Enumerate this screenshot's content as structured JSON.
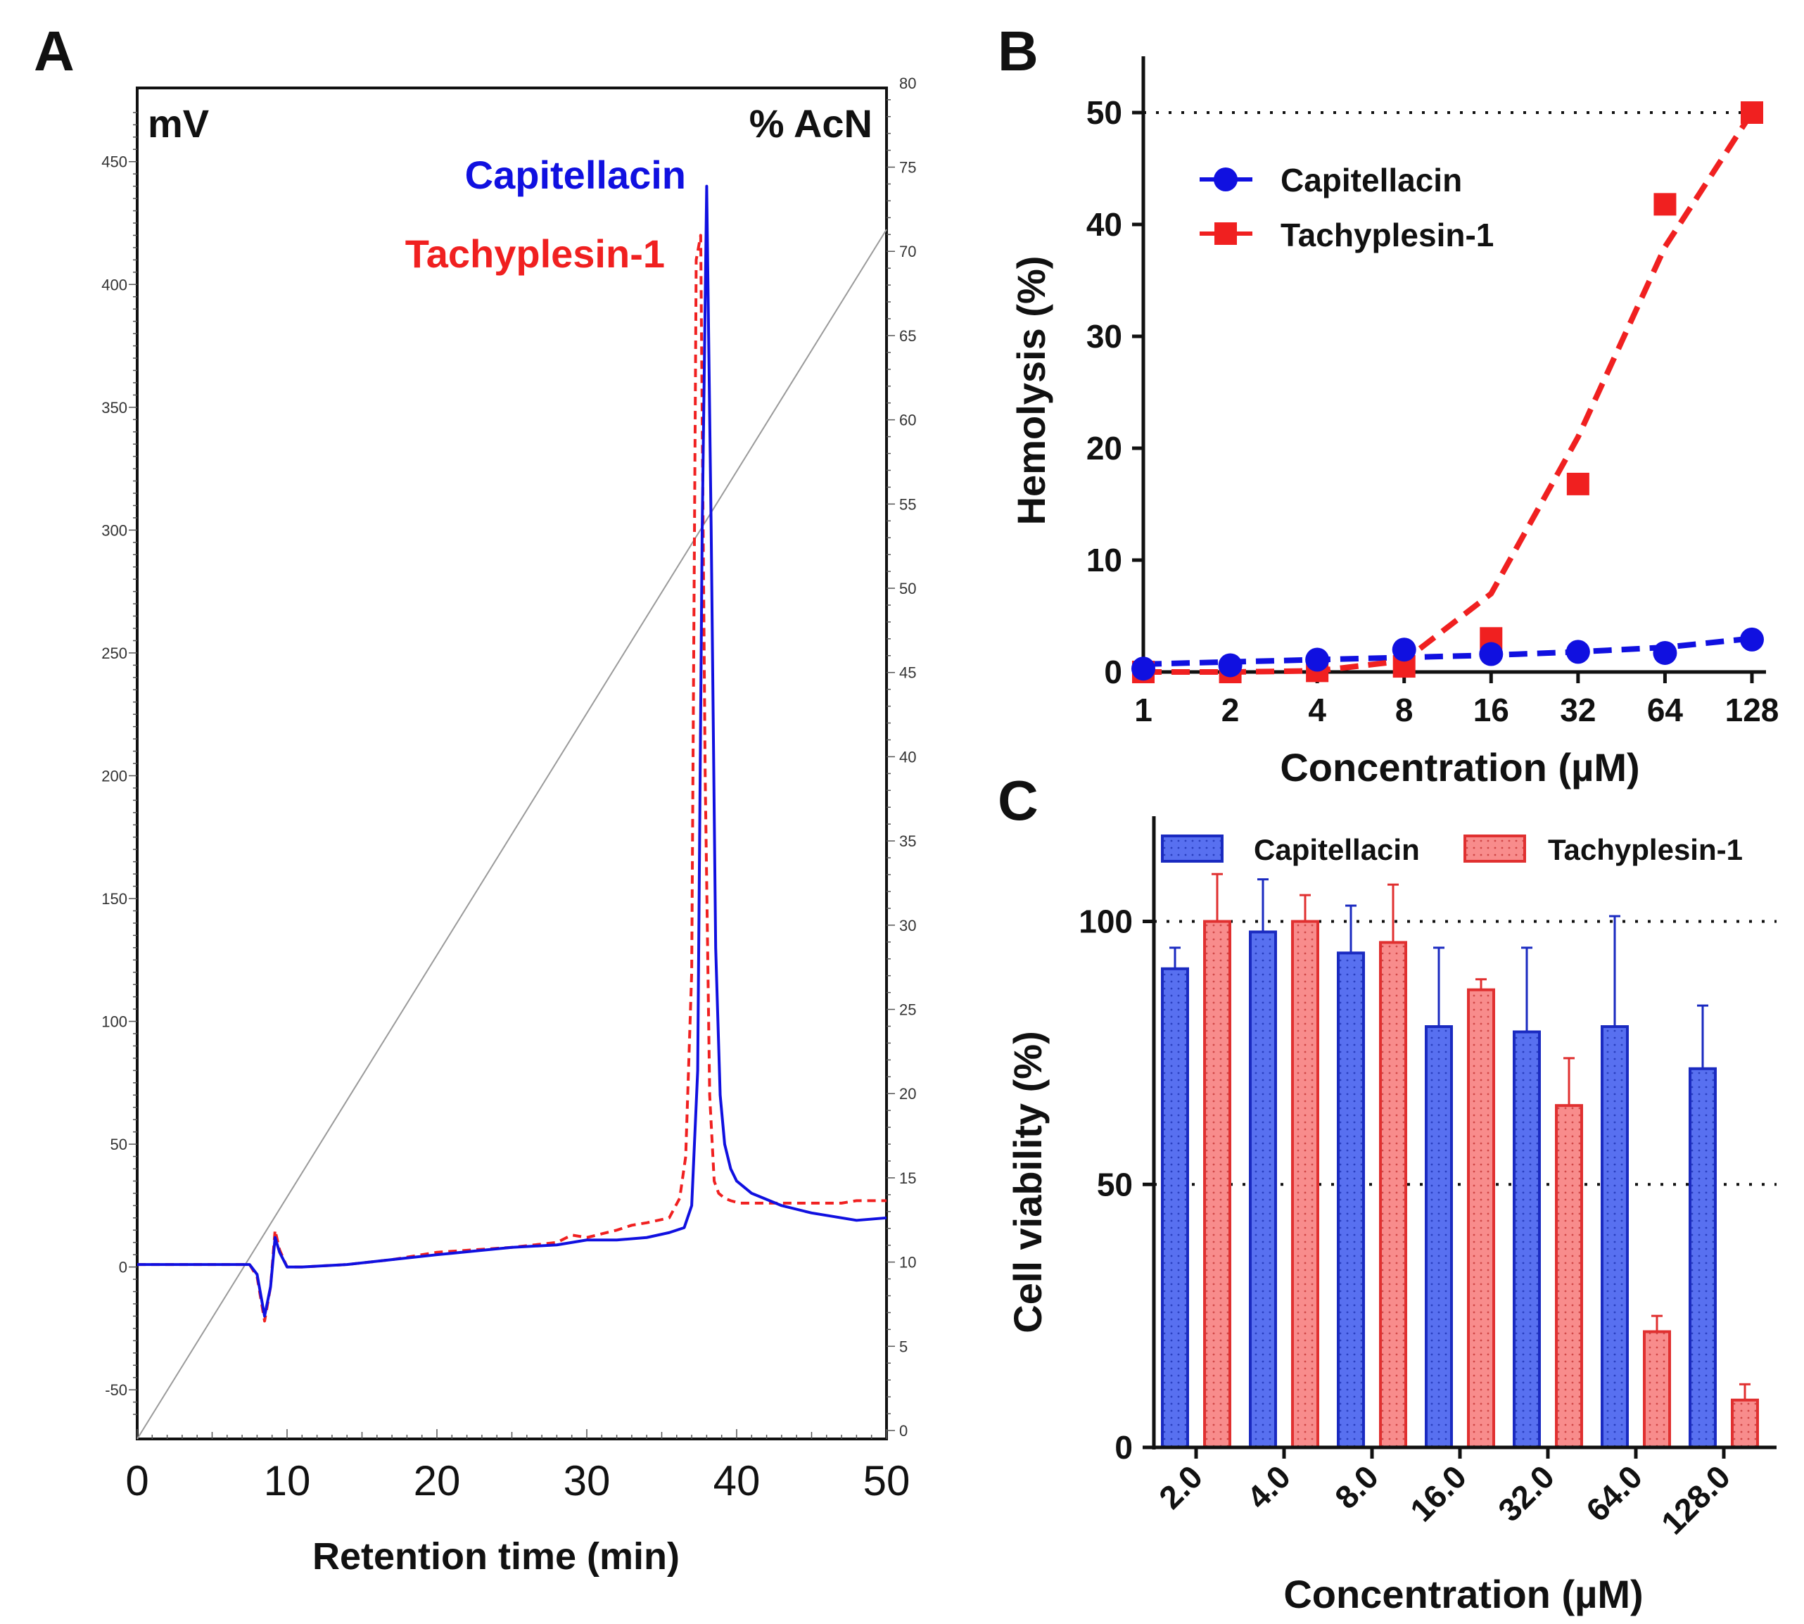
{
  "colors": {
    "capitellacin": "#1010e0",
    "tachyplesin": "#f02020",
    "capitellacin_bar": "#5870f0",
    "tachyplesin_bar": "#f88c8c",
    "axis": "#111111",
    "gradient": "#9a9a9a"
  },
  "panels": {
    "a": "A",
    "b": "B",
    "c": "C"
  },
  "chart_data": [
    {
      "id": "A",
      "type": "line",
      "title": "",
      "xlabel": "Retention time (min)",
      "ylabel_left": "mV",
      "ylabel_right": "% AcN",
      "xlim": [
        0,
        50
      ],
      "ylim": [
        -70,
        480
      ],
      "ylim_right": [
        -0.5,
        79.7
      ],
      "x_ticks": [
        0,
        10,
        20,
        30,
        40,
        50
      ],
      "y_ticks": [
        -50,
        0,
        50,
        100,
        150,
        200,
        250,
        300,
        350,
        400,
        450
      ],
      "y_ticks_right": [
        0,
        5,
        10,
        15,
        20,
        25,
        30,
        35,
        40,
        45,
        50,
        55,
        60,
        65,
        70,
        75,
        80
      ],
      "annotations": [
        "Capitellacin",
        "Tachyplesin-1"
      ],
      "series": [
        {
          "name": "Capitellacin",
          "style": "solid",
          "x": [
            0,
            7.5,
            8.0,
            8.5,
            8.9,
            9.2,
            9.5,
            10.0,
            11,
            14,
            17,
            20,
            25,
            28,
            29,
            30,
            32,
            34,
            35.5,
            36.5,
            37.0,
            37.4,
            37.7,
            38.0,
            38.3,
            38.6,
            38.9,
            39.2,
            39.6,
            40.0,
            41,
            43,
            45,
            47,
            48,
            50
          ],
          "y": [
            1,
            1,
            -3,
            -20,
            -8,
            12,
            6,
            0,
            0,
            1,
            3,
            5,
            8,
            9,
            10,
            11,
            11,
            12,
            14,
            16,
            25,
            80,
            300,
            440,
            300,
            130,
            70,
            50,
            40,
            35,
            30,
            25,
            22,
            20,
            19,
            20
          ]
        },
        {
          "name": "Tachyplesin-1",
          "style": "dashed",
          "x": [
            0,
            7.5,
            8.0,
            8.5,
            8.9,
            9.2,
            9.5,
            10.0,
            11,
            14,
            17,
            20,
            25,
            28,
            29,
            30,
            32,
            33,
            34,
            35.5,
            36.2,
            36.6,
            37.0,
            37.3,
            37.6,
            37.9,
            38.2,
            38.5,
            38.8,
            39.2,
            39.6,
            40.2,
            41,
            43,
            45,
            47,
            48,
            50
          ],
          "y": [
            1,
            1,
            -4,
            -22,
            -8,
            15,
            7,
            0,
            0,
            1,
            3,
            6,
            8,
            10,
            13,
            12,
            15,
            17,
            18,
            20,
            28,
            45,
            120,
            410,
            420,
            200,
            70,
            35,
            30,
            28,
            27,
            26,
            26,
            26,
            26,
            26,
            27,
            27
          ]
        },
        {
          "name": "% AcN gradient",
          "style": "thin",
          "axis": "right",
          "x": [
            0,
            50
          ],
          "y": [
            -0.5,
            71.3
          ]
        }
      ]
    },
    {
      "id": "B",
      "type": "line",
      "title": "",
      "xlabel": "Concentration (µM)",
      "ylabel": "Hemolysis (%)",
      "xscale": "log2",
      "categories": [
        "1",
        "2",
        "4",
        "8",
        "16",
        "32",
        "64",
        "128"
      ],
      "x": [
        1,
        2,
        4,
        8,
        16,
        32,
        64,
        128
      ],
      "ylim": [
        -2,
        55
      ],
      "y_ticks": [
        0,
        10,
        20,
        30,
        40,
        50
      ],
      "reference_line": 50,
      "legend": [
        "Capitellacin",
        "Tachyplesin-1"
      ],
      "series": [
        {
          "name": "Capitellacin",
          "marker": "circle",
          "values": [
            0.3,
            0.6,
            1.1,
            2.0,
            1.6,
            1.8,
            1.7,
            2.9
          ],
          "fit": [
            0.7,
            0.9,
            1.1,
            1.3,
            1.5,
            1.8,
            2.2,
            3.0
          ]
        },
        {
          "name": "Tachyplesin-1",
          "marker": "square",
          "values": [
            0,
            0,
            0.1,
            0.5,
            3.0,
            16.8,
            41.8,
            50.0
          ],
          "fit": [
            0,
            0,
            0.1,
            1.0,
            7.0,
            21.0,
            38.0,
            50.0
          ]
        }
      ]
    },
    {
      "id": "C",
      "type": "bar",
      "title": "",
      "xlabel": "Concentration (µM)",
      "ylabel": "Cell viability (%)",
      "categories": [
        "2.0",
        "4.0",
        "8.0",
        "16.0",
        "32.0",
        "64.0",
        "128.0"
      ],
      "ylim": [
        0,
        120
      ],
      "y_ticks": [
        0,
        50,
        100
      ],
      "reference_lines": [
        50,
        100
      ],
      "legend": [
        "Capitellacin",
        "Tachyplesin-1"
      ],
      "series": [
        {
          "name": "Capitellacin",
          "values": [
            91,
            98,
            94,
            80,
            79,
            80,
            72
          ],
          "errors": [
            4,
            10,
            9,
            15,
            16,
            21,
            12
          ]
        },
        {
          "name": "Tachyplesin-1",
          "values": [
            100,
            100,
            96,
            87,
            65,
            22,
            9
          ],
          "errors": [
            9,
            5,
            11,
            2,
            9,
            3,
            3
          ]
        }
      ]
    }
  ]
}
